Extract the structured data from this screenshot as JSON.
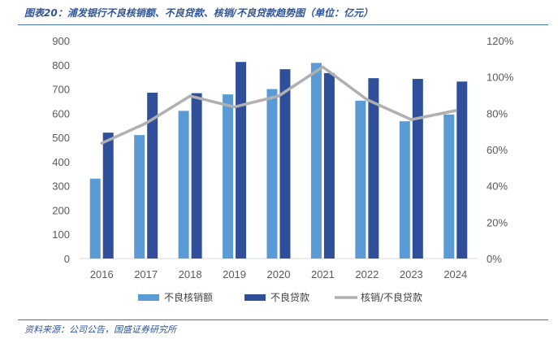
{
  "header": {
    "title": "图表20：浦发银行不良核销额、不良贷款、核销/不良贷款趋势图（单位：亿元）"
  },
  "footer": {
    "source": "资料来源：公司公告，国盛证券研究所"
  },
  "colors": {
    "writeoff": "#5b9bd5",
    "npl": "#2f4f9b",
    "ratio": "#b0b0b0",
    "axis": "#d9d9d9",
    "accent": "#4472c4"
  },
  "chart_data": {
    "type": "bar",
    "categories": [
      "2016",
      "2017",
      "2018",
      "2019",
      "2020",
      "2021",
      "2022",
      "2023",
      "2024"
    ],
    "series": [
      {
        "name": "不良核销额",
        "type": "bar",
        "axis": "left",
        "values": [
          330,
          510,
          610,
          678,
          700,
          808,
          652,
          567,
          595
        ]
      },
      {
        "name": "不良贷款",
        "type": "bar",
        "axis": "left",
        "values": [
          520,
          685,
          683,
          812,
          782,
          766,
          745,
          742,
          731
        ]
      },
      {
        "name": "核销/不良贷款",
        "type": "line",
        "axis": "right",
        "values": [
          63.5,
          74.5,
          89.5,
          83.5,
          89.5,
          105.5,
          87.5,
          76.5,
          81.5
        ]
      }
    ],
    "ylim": [
      0,
      900
    ],
    "yticks": [
      "0",
      "100",
      "200",
      "300",
      "400",
      "500",
      "600",
      "700",
      "800",
      "900"
    ],
    "y2lim": [
      0,
      120
    ],
    "y2ticks": [
      "0%",
      "20%",
      "40%",
      "60%",
      "80%",
      "100%",
      "120%"
    ],
    "legend_position": "bottom",
    "grid": false
  }
}
